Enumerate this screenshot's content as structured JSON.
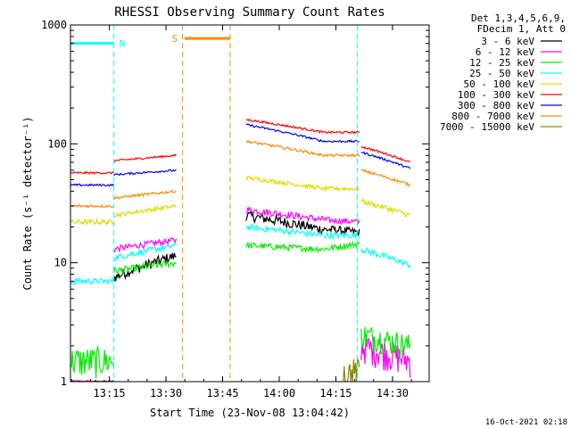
{
  "chart_data": {
    "type": "line",
    "title": "RHESSI Observing Summary Count Rates",
    "xlabel": "Start Time (23-Nov-08 13:04:42)",
    "ylabel": "Count Rate (s⁻¹ detector⁻¹)",
    "y_scale": "log",
    "ylim": [
      1,
      1000
    ],
    "xlim_minutes": [
      0,
      95
    ],
    "x_ticks": [
      {
        "minute": 10.3,
        "label": "13:15"
      },
      {
        "minute": 25.3,
        "label": "13:30"
      },
      {
        "minute": 40.3,
        "label": "13:45"
      },
      {
        "minute": 55.3,
        "label": "14:00"
      },
      {
        "minute": 70.3,
        "label": "14:15"
      },
      {
        "minute": 85.3,
        "label": "14:30"
      }
    ],
    "y_ticks": [
      {
        "value": 1,
        "label": "1"
      },
      {
        "value": 10,
        "label": "10"
      },
      {
        "value": 100,
        "label": "100"
      },
      {
        "value": 1000,
        "label": "1000"
      }
    ],
    "legend_header": [
      "Det 1,3,4,5,6,9,",
      "FDecim 1, Att 0"
    ],
    "legend_position": "right, outside",
    "grid": false,
    "background": "#ffffff",
    "series": [
      {
        "name": "3 - 6 keV",
        "color": "#000000",
        "segments": [
          {
            "x": [
              0,
              11.5
            ],
            "y": [
              1,
              1
            ],
            "noise": 0.02
          },
          {
            "x": [
              11.5,
              28
            ],
            "y": [
              7.5,
              11.5
            ],
            "noise": 0.1
          },
          {
            "x": [
              46.5,
              67
            ],
            "y": [
              25,
              19
            ],
            "noise": 0.1
          },
          {
            "x": [
              67,
              70
            ],
            "y": [
              19,
              19
            ],
            "noise": 0.08
          },
          {
            "x": [
              70,
              76.5
            ],
            "y": [
              19,
              18
            ],
            "noise": 0.08
          }
        ]
      },
      {
        "name": "6 - 12 keV",
        "color": "#ff00ff",
        "segments": [
          {
            "x": [
              0,
              11.5
            ],
            "y": [
              1,
              1
            ],
            "noise": 0.02
          },
          {
            "x": [
              11.5,
              28
            ],
            "y": [
              13,
              15.5
            ],
            "noise": 0.06
          },
          {
            "x": [
              46.5,
              67
            ],
            "y": [
              28,
              23
            ],
            "noise": 0.07
          },
          {
            "x": [
              67,
              76.5
            ],
            "y": [
              23,
              22
            ],
            "noise": 0.06
          },
          {
            "x": [
              77,
              90
            ],
            "y": [
              2.0,
              1.5
            ],
            "noise": 0.3
          }
        ]
      },
      {
        "name": "12 - 25 keV",
        "color": "#00ee00",
        "segments": [
          {
            "x": [
              0,
              11.5
            ],
            "y": [
              1.5,
              1.5
            ],
            "noise": 0.3
          },
          {
            "x": [
              11.5,
              28
            ],
            "y": [
              8.5,
              10
            ],
            "noise": 0.07
          },
          {
            "x": [
              46.5,
              67
            ],
            "y": [
              14,
              13
            ],
            "noise": 0.06
          },
          {
            "x": [
              67,
              76.5
            ],
            "y": [
              13,
              14.5
            ],
            "noise": 0.06
          },
          {
            "x": [
              77,
              90
            ],
            "y": [
              2.5,
              2.0
            ],
            "noise": 0.25
          }
        ]
      },
      {
        "name": "25 - 50 keV",
        "color": "#00ffff",
        "segments": [
          {
            "x": [
              0,
              11.5
            ],
            "y": [
              7,
              7
            ],
            "noise": 0.06
          },
          {
            "x": [
              11.5,
              28
            ],
            "y": [
              11,
              14
            ],
            "noise": 0.06
          },
          {
            "x": [
              46.5,
              67
            ],
            "y": [
              20,
              17
            ],
            "noise": 0.06
          },
          {
            "x": [
              67,
              76.5
            ],
            "y": [
              17,
              17
            ],
            "noise": 0.06
          },
          {
            "x": [
              77,
              90
            ],
            "y": [
              13,
              9.5
            ],
            "noise": 0.06
          }
        ]
      },
      {
        "name": "50 - 100 keV",
        "color": "#dddd00",
        "segments": [
          {
            "x": [
              0,
              11.5
            ],
            "y": [
              22,
              22
            ],
            "noise": 0.05
          },
          {
            "x": [
              11.5,
              28
            ],
            "y": [
              25,
              30
            ],
            "noise": 0.04
          },
          {
            "x": [
              46.5,
              67
            ],
            "y": [
              52,
              42
            ],
            "noise": 0.04
          },
          {
            "x": [
              67,
              76.5
            ],
            "y": [
              42,
              42
            ],
            "noise": 0.04
          },
          {
            "x": [
              77,
              90
            ],
            "y": [
              33,
              25
            ],
            "noise": 0.05
          }
        ]
      },
      {
        "name": "100 - 300 keV",
        "color": "#ff0000",
        "segments": [
          {
            "x": [
              0,
              11.5
            ],
            "y": [
              57,
              57
            ],
            "noise": 0.02
          },
          {
            "x": [
              11.5,
              28
            ],
            "y": [
              72,
              80
            ],
            "noise": 0.02
          },
          {
            "x": [
              46.5,
              67
            ],
            "y": [
              160,
              125
            ],
            "noise": 0.02
          },
          {
            "x": [
              67,
              76.5
            ],
            "y": [
              125,
              125
            ],
            "noise": 0.02
          },
          {
            "x": [
              77,
              90
            ],
            "y": [
              95,
              70
            ],
            "noise": 0.02
          }
        ]
      },
      {
        "name": "300 - 800 keV",
        "color": "#0000ff",
        "segments": [
          {
            "x": [
              0,
              11.5
            ],
            "y": [
              45,
              45
            ],
            "noise": 0.02
          },
          {
            "x": [
              11.5,
              28
            ],
            "y": [
              55,
              60
            ],
            "noise": 0.02
          },
          {
            "x": [
              46.5,
              67
            ],
            "y": [
              145,
              105
            ],
            "noise": 0.02
          },
          {
            "x": [
              67,
              76.5
            ],
            "y": [
              105,
              105
            ],
            "noise": 0.02
          },
          {
            "x": [
              77,
              90
            ],
            "y": [
              85,
              62
            ],
            "noise": 0.02
          }
        ]
      },
      {
        "name": "800 - 7000 keV",
        "color": "#ff8800",
        "segments": [
          {
            "x": [
              0,
              11.5
            ],
            "y": [
              30,
              30
            ],
            "noise": 0.025
          },
          {
            "x": [
              11.5,
              28
            ],
            "y": [
              35,
              40
            ],
            "noise": 0.025
          },
          {
            "x": [
              46.5,
              67
            ],
            "y": [
              105,
              80
            ],
            "noise": 0.025
          },
          {
            "x": [
              67,
              76.5
            ],
            "y": [
              80,
              80
            ],
            "noise": 0.025
          },
          {
            "x": [
              77,
              90
            ],
            "y": [
              60,
              45
            ],
            "noise": 0.025
          }
        ]
      },
      {
        "name": "7000 - 15000 keV",
        "color": "#888800",
        "segments": [
          {
            "x": [
              72,
              76.5
            ],
            "y": [
              1.2,
              1.2
            ],
            "noise": 0.3
          }
        ]
      }
    ],
    "annotations": [
      {
        "label": "N",
        "color": "#00ffff",
        "bar": {
          "x": [
            0,
            11.5
          ],
          "y": 700
        },
        "boundaries_minute": [
          11.5,
          76
        ]
      },
      {
        "label": "S",
        "color": "#ff8800",
        "bar": {
          "x": [
            30.2,
            42.3
          ],
          "y": 770
        },
        "boundaries_minute": [
          29.7,
          42.3
        ]
      }
    ]
  },
  "footer": {
    "timestamp": "16-Oct-2021 02:18"
  }
}
